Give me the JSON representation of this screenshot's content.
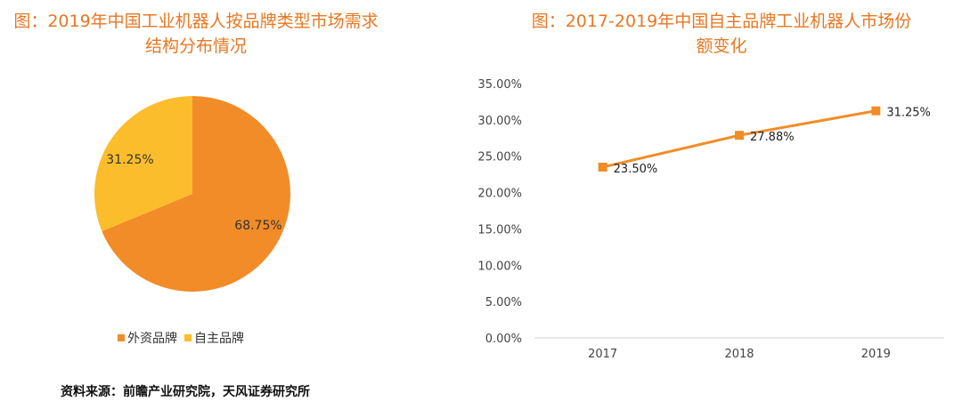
{
  "source": "资料来源：前瞻产业研究院，天风证券研究所",
  "chart_data": [
    {
      "type": "pie",
      "title_line1": "图：2019年中国工业机器人按品牌类型市场需求",
      "title_line2": "结构分布情况",
      "slices": [
        {
          "name": "外资品牌",
          "value": 68.75,
          "label": "68.75%",
          "color": "#f28c28"
        },
        {
          "name": "自主品牌",
          "value": 31.25,
          "label": "31.25%",
          "color": "#fbbd2c"
        }
      ]
    },
    {
      "type": "line",
      "title_line1": "图：2017-2019年中国自主品牌工业机器人市场份",
      "title_line2": "额变化",
      "categories": [
        "2017",
        "2018",
        "2019"
      ],
      "series": [
        {
          "values": [
            23.5,
            27.88,
            31.25
          ],
          "labels": [
            "23.50%",
            "27.88%",
            "31.25%"
          ],
          "color": "#f28c28"
        }
      ],
      "ylim": [
        0,
        35
      ],
      "yticks": [
        "0.00%",
        "5.00%",
        "10.00%",
        "15.00%",
        "20.00%",
        "25.00%",
        "30.00%",
        "35.00%"
      ],
      "grid": false
    }
  ]
}
